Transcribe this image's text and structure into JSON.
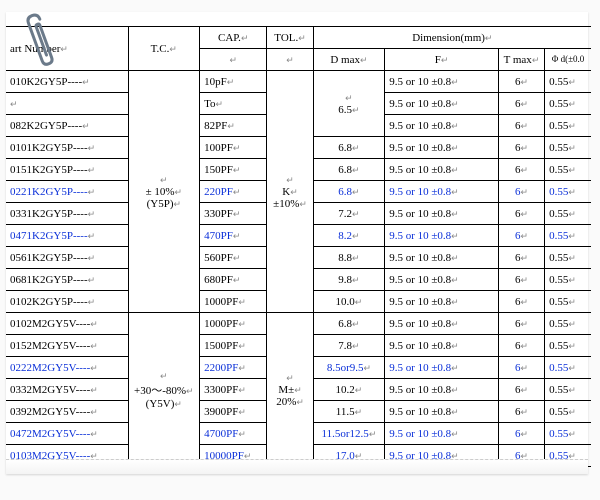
{
  "header": {
    "part_number": "art Number",
    "tc": "T.C.",
    "cap": "CAP.",
    "tol": "TOL.",
    "dimension": "Dimension(mm)",
    "d_max": "D max",
    "f": "F",
    "t_max": "T max",
    "phi": "Φ d(±0.0"
  },
  "tc_groups": [
    {
      "label_top": "± 10%",
      "label_bot": "(Y5P)"
    },
    {
      "label_top": "+30～-80%",
      "label_bot": "(Y5V)"
    }
  ],
  "tol_groups": [
    {
      "label_top": "K",
      "label_bot": "±10%"
    },
    {
      "label_top": "M±",
      "label_bot": "20%"
    }
  ],
  "f_common": "9.5 or 10 ±0.8",
  "t_common": "6",
  "phi_common": "0.55",
  "rows": [
    {
      "pn": "010K2GY5P----",
      "cap": "10pF",
      "d": "",
      "blue": false,
      "group": 0,
      "cap_span_top": true
    },
    {
      "pn": "",
      "cap": "To",
      "d": "6.5",
      "blue": false,
      "group": 0
    },
    {
      "pn": "082K2GY5P----",
      "cap": "82PF",
      "d": "",
      "blue": false,
      "group": 0
    },
    {
      "pn": "0101K2GY5P----",
      "cap": "100PF",
      "d": "6.8",
      "blue": false,
      "group": 0
    },
    {
      "pn": "0151K2GY5P----",
      "cap": "150PF",
      "d": "6.8",
      "blue": false,
      "group": 0
    },
    {
      "pn": "0221K2GY5P----",
      "cap": "220PF",
      "d": "6.8",
      "blue": true,
      "group": 0
    },
    {
      "pn": "0331K2GY5P----",
      "cap": "330PF",
      "d": "7.2",
      "blue": false,
      "group": 0
    },
    {
      "pn": "0471K2GY5P----",
      "cap": "470PF",
      "d": "8.2",
      "blue": true,
      "group": 0
    },
    {
      "pn": "0561K2GY5P----",
      "cap": "560PF",
      "d": "8.8",
      "blue": false,
      "group": 0
    },
    {
      "pn": "0681K2GY5P----",
      "cap": "680PF",
      "d": "9.8",
      "blue": false,
      "group": 0
    },
    {
      "pn": "0102K2GY5P----",
      "cap": "1000PF",
      "d": "10.0",
      "blue": false,
      "group": 0
    },
    {
      "pn": "0102M2GY5V----",
      "cap": "1000PF",
      "d": "6.8",
      "blue": false,
      "group": 1
    },
    {
      "pn": "0152M2GY5V----",
      "cap": "1500PF",
      "d": "7.8",
      "blue": false,
      "group": 1
    },
    {
      "pn": "0222M2GY5V----",
      "cap": "2200PF",
      "d": "8.5or9.5",
      "blue": true,
      "group": 1
    },
    {
      "pn": "0332M2GY5V----",
      "cap": "3300PF",
      "d": "10.2",
      "blue": false,
      "group": 1
    },
    {
      "pn": "0392M2GY5V----",
      "cap": "3900PF",
      "d": "11.5",
      "blue": false,
      "group": 1
    },
    {
      "pn": "0472M2GY5V----",
      "cap": "4700PF",
      "d": "11.5or12.5",
      "blue": true,
      "group": 1
    },
    {
      "pn": "0103M2GY5V----",
      "cap": "10000PF",
      "d": "17.0",
      "blue": true,
      "group": 1
    }
  ]
}
